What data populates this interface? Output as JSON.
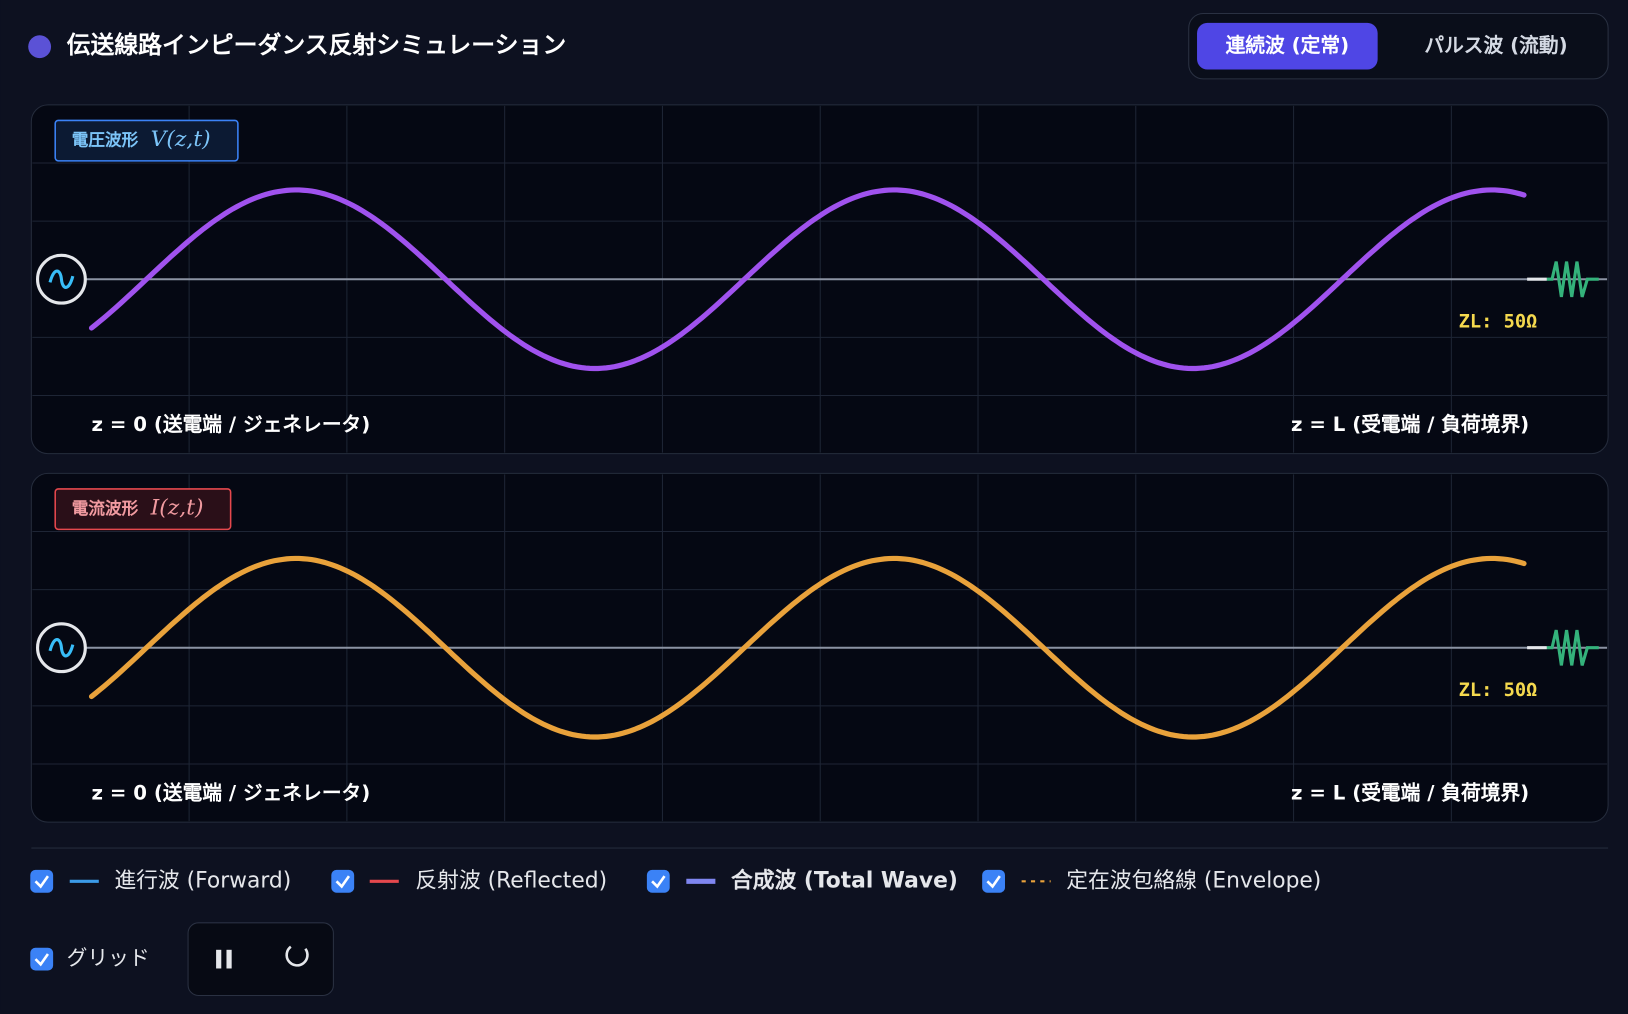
{
  "header": {
    "title": "伝送線路インピーダンス反射シミュレーション"
  },
  "mode_tabs": [
    "連続波 (定常)",
    "パルス波 (流動)"
  ],
  "panels": [
    {
      "label": "電圧波形",
      "symbol": "V(z,t)",
      "source_end": "z = 0 (送電端 / ジェネレータ)",
      "load_end": "z = L (受電端 / 負荷境界)",
      "load": "ZL: 50Ω"
    },
    {
      "label": "電流波形",
      "symbol": "I(z,t)",
      "source_end": "z = 0 (送電端 / ジェネレータ)",
      "load_end": "z = L (受電端 / 負荷境界)",
      "load": "ZL: 50Ω"
    }
  ],
  "legend": [
    "進行波 (Forward)",
    "反射波 (Reflected)",
    "合成波 (Total Wave)",
    "定在波包絡線 (Envelope)"
  ],
  "grid_toggle": "グリッド"
}
